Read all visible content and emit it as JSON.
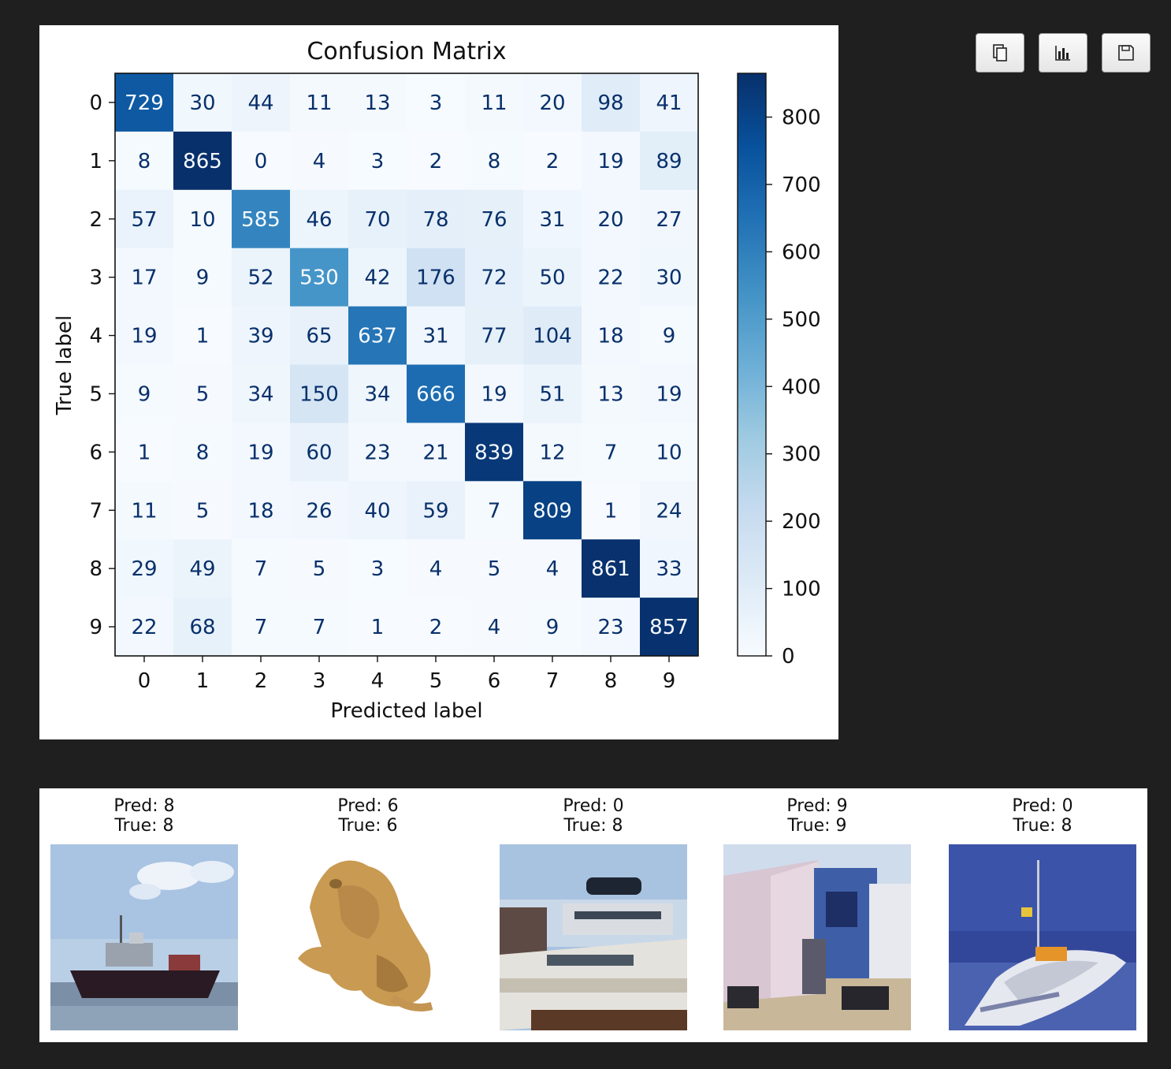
{
  "toolbar": {
    "buttons": [
      {
        "name": "copy-button",
        "icon": "copy-icon"
      },
      {
        "name": "chart-button",
        "icon": "bar-chart-icon"
      },
      {
        "name": "save-button",
        "icon": "save-icon"
      }
    ]
  },
  "chart_data": {
    "type": "heatmap",
    "title": "Confusion Matrix",
    "xlabel": "Predicted label",
    "ylabel": "True label",
    "x_categories": [
      "0",
      "1",
      "2",
      "3",
      "4",
      "5",
      "6",
      "7",
      "8",
      "9"
    ],
    "y_categories": [
      "0",
      "1",
      "2",
      "3",
      "4",
      "5",
      "6",
      "7",
      "8",
      "9"
    ],
    "matrix": [
      [
        729,
        30,
        44,
        11,
        13,
        3,
        11,
        20,
        98,
        41
      ],
      [
        8,
        865,
        0,
        4,
        3,
        2,
        8,
        2,
        19,
        89
      ],
      [
        57,
        10,
        585,
        46,
        70,
        78,
        76,
        31,
        20,
        27
      ],
      [
        17,
        9,
        52,
        530,
        42,
        176,
        72,
        50,
        22,
        30
      ],
      [
        19,
        1,
        39,
        65,
        637,
        31,
        77,
        104,
        18,
        9
      ],
      [
        9,
        5,
        34,
        150,
        34,
        666,
        19,
        51,
        13,
        19
      ],
      [
        1,
        8,
        19,
        60,
        23,
        21,
        839,
        12,
        7,
        10
      ],
      [
        11,
        5,
        18,
        26,
        40,
        59,
        7,
        809,
        1,
        24
      ],
      [
        29,
        49,
        7,
        5,
        3,
        4,
        5,
        4,
        861,
        33
      ],
      [
        22,
        68,
        7,
        7,
        1,
        2,
        4,
        9,
        23,
        857
      ]
    ],
    "colormap": "Blues",
    "colorbar": {
      "min": 0,
      "max": 865,
      "ticks": [
        0,
        100,
        200,
        300,
        400,
        500,
        600,
        700,
        800
      ]
    }
  },
  "samples": [
    {
      "pred": "Pred: 8",
      "true": "True: 8",
      "image": "ship"
    },
    {
      "pred": "Pred: 6",
      "true": "True: 6",
      "image": "frog"
    },
    {
      "pred": "Pred: 0",
      "true": "True: 8",
      "image": "ship"
    },
    {
      "pred": "Pred: 9",
      "true": "True: 9",
      "image": "truck"
    },
    {
      "pred": "Pred: 0",
      "true": "True: 8",
      "image": "ship"
    }
  ]
}
